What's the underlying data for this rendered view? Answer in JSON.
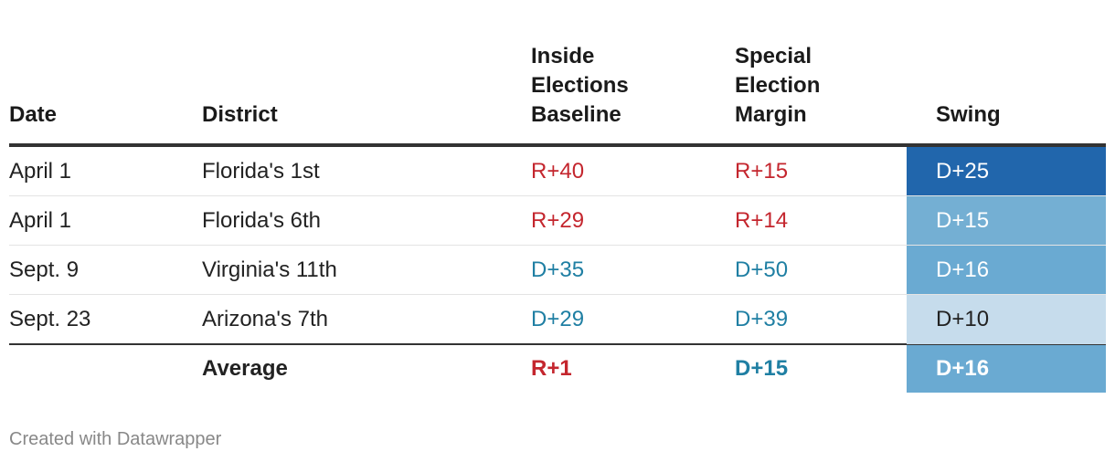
{
  "header": [
    "Date",
    "District",
    "Inside Elections Baseline",
    "Special Election Margin",
    "Swing"
  ],
  "rows": [
    [
      "April 1",
      "Florida's 1st",
      "R+40",
      "R+15",
      "D+25"
    ],
    [
      "April 1",
      "Florida's 6th",
      "R+29",
      "R+14",
      "D+15"
    ],
    [
      "Sept. 9",
      "Virginia's 11th",
      "D+35",
      "D+50",
      "D+16"
    ],
    [
      "Sept. 23",
      "Arizona's 7th",
      "D+29",
      "D+39",
      "D+10"
    ]
  ],
  "average": [
    "Average",
    "R+1",
    "D+15",
    "D+16"
  ],
  "footer": "Created with Datawrapper"
}
